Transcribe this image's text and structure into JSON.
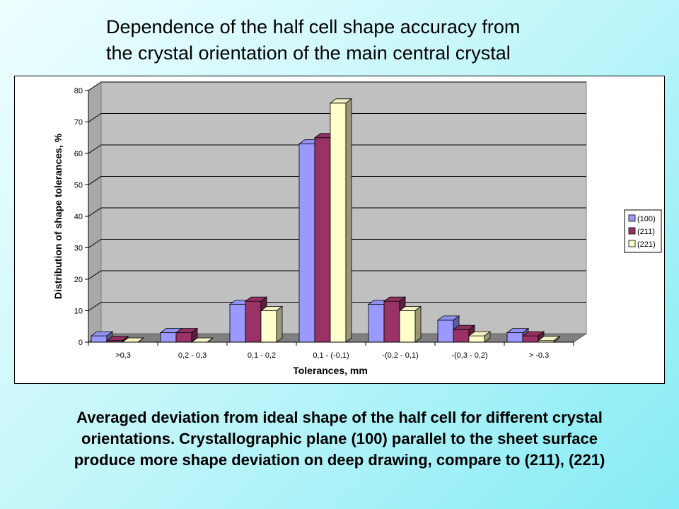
{
  "title": {
    "line1": "Dependence of the half cell shape accuracy from",
    "line2": "the crystal orientation of the main central crystal"
  },
  "caption": {
    "line1": "Averaged deviation from ideal shape of the half cell for different crystal",
    "line2": "orientations. Crystallographic plane (100) parallel to the sheet surface",
    "line3": "produce more shape deviation on deep drawing, compare to (211), (221)"
  },
  "colors": {
    "series_100": "#9999ff",
    "series_211": "#993366",
    "series_221": "#ffffcc",
    "plot_wall": "#c0c0c0",
    "plot_floor": "#808080"
  },
  "chart_data": {
    "type": "bar",
    "title": "",
    "xlabel": "Tolerances, mm",
    "ylabel": "Distribution of shape tolerances, %",
    "ylim": [
      0,
      80
    ],
    "yticks": [
      0,
      10,
      20,
      30,
      40,
      50,
      60,
      70,
      80
    ],
    "grid": true,
    "legend_position": "right",
    "three_d": true,
    "categories": [
      ">0,3",
      "0,2 - 0,3",
      "0,1 - 0,2",
      "0,1 - (-0,1)",
      "-(0,2 - 0,1)",
      "-(0,3 - 0,2)",
      "> -0.3"
    ],
    "series": [
      {
        "name": "(100)",
        "values": [
          2,
          3,
          12,
          63,
          12,
          7,
          3
        ]
      },
      {
        "name": "(211)",
        "values": [
          0.5,
          3,
          13,
          65,
          13,
          4,
          2
        ]
      },
      {
        "name": "(221)",
        "values": [
          0,
          0,
          10,
          76,
          10,
          2,
          0.5
        ]
      }
    ]
  }
}
